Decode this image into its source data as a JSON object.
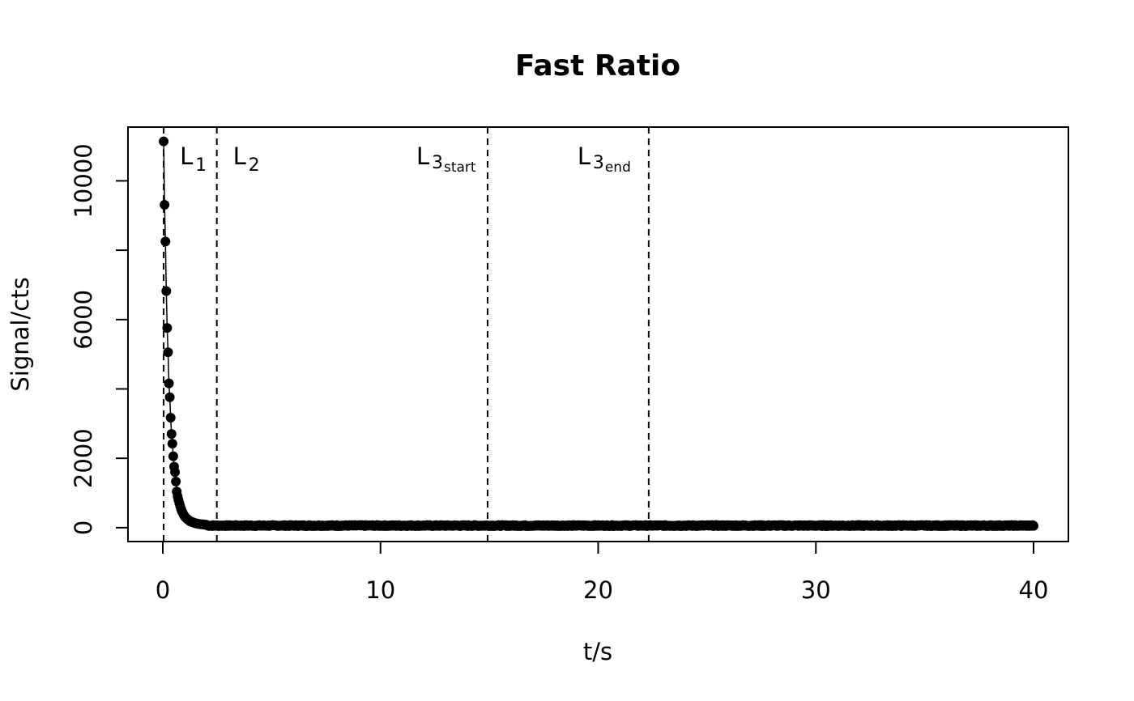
{
  "chart_data": {
    "type": "scatter",
    "title": "Fast Ratio",
    "xlabel": "t/s",
    "ylabel": "Signal/cts",
    "xlim": [
      -1.6,
      41.6
    ],
    "ylim": [
      -400,
      11550
    ],
    "xticks": [
      0,
      10,
      20,
      30,
      40
    ],
    "yticks": [
      0,
      2000,
      6000,
      10000
    ],
    "ytick_labels_shown": [
      "0",
      "2000",
      "6000",
      "10000"
    ],
    "ytick_marks": [
      0,
      2000,
      4000,
      6000,
      8000,
      10000
    ],
    "grid": false,
    "legend": "none",
    "point_color": "#000000",
    "line_connected": true,
    "series": [
      {
        "points_decay": {
          "t": [
            0.04,
            0.08,
            0.12,
            0.16,
            0.2,
            0.24,
            0.28,
            0.32,
            0.36,
            0.4,
            0.44,
            0.48,
            0.52,
            0.56,
            0.6,
            0.64,
            0.68,
            0.72,
            0.76,
            0.8,
            0.84,
            0.88,
            0.92,
            0.96,
            1.0,
            1.04,
            1.08,
            1.12,
            1.16,
            1.2,
            1.24,
            1.28,
            1.32,
            1.36,
            1.4,
            1.44,
            1.48,
            1.52,
            1.56,
            1.6,
            1.64,
            1.68,
            1.72,
            1.76,
            1.8,
            1.84,
            1.88,
            1.92,
            1.96,
            2.0
          ],
          "signal": [
            11140,
            9310,
            8250,
            6820,
            5760,
            5060,
            4160,
            3760,
            3170,
            2700,
            2420,
            2060,
            1760,
            1600,
            1330,
            1040,
            900,
            800,
            700,
            620,
            540,
            470,
            420,
            370,
            330,
            300,
            270,
            250,
            230,
            210,
            190,
            180,
            170,
            160,
            150,
            140,
            130,
            125,
            120,
            115,
            110,
            105,
            100,
            100,
            95,
            95,
            90,
            90,
            85,
            85
          ]
        },
        "tail": {
          "t_start": 2.0,
          "t_end": 40.0,
          "t_step": 0.04,
          "signal_approx": 60
        }
      }
    ],
    "vlines": [
      {
        "x": 0.04,
        "label_main": "L",
        "label_sub": "1",
        "style": "dashed"
      },
      {
        "x": 2.48,
        "label_main": "L",
        "label_sub": "2",
        "style": "dashed"
      },
      {
        "x": 14.92,
        "label_main": "L",
        "label_sub": "3",
        "label_sub2": "start",
        "style": "dashed"
      },
      {
        "x": 22.32,
        "label_main": "L",
        "label_sub": "3",
        "label_sub2": "end",
        "style": "dashed"
      }
    ]
  }
}
